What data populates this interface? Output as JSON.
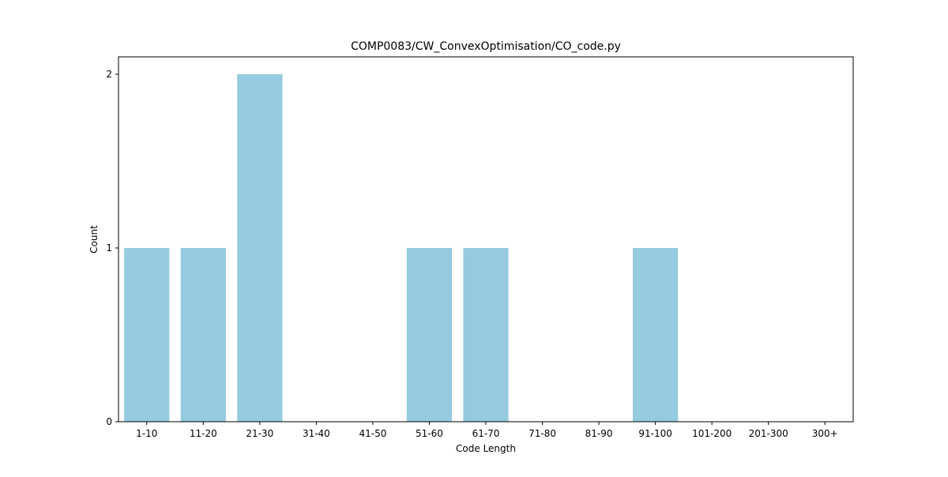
{
  "chart_data": {
    "type": "bar",
    "title": "COMP0083/CW_ConvexOptimisation/CO_code.py",
    "xlabel": "Code Length",
    "ylabel": "Count",
    "categories": [
      "1-10",
      "11-20",
      "21-30",
      "31-40",
      "41-50",
      "51-60",
      "61-70",
      "71-80",
      "81-90",
      "91-100",
      "101-200",
      "201-300",
      "300+"
    ],
    "values": [
      1,
      1,
      2,
      0,
      0,
      1,
      1,
      0,
      0,
      1,
      0,
      0,
      0
    ],
    "yticks": [
      0,
      1,
      2
    ],
    "ylim": [
      0,
      2.1
    ],
    "grid": false,
    "bar_color": "#96cadf"
  }
}
